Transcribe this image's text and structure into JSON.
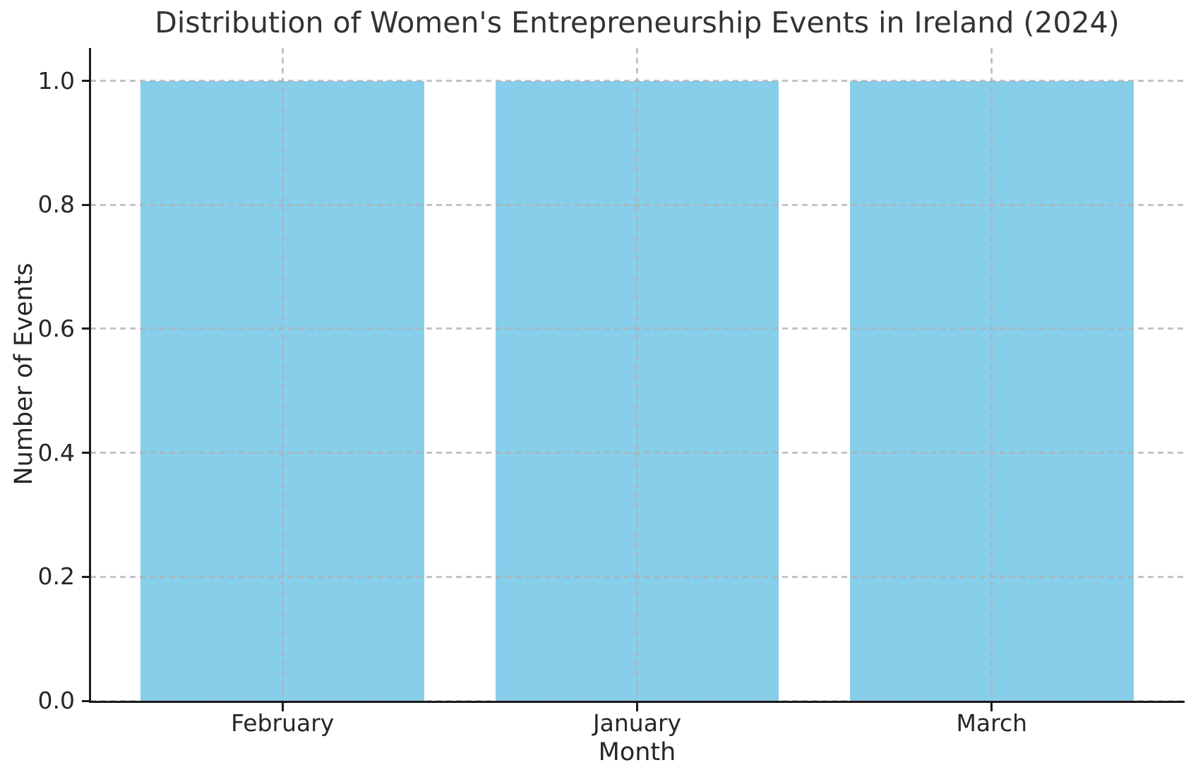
{
  "chart_data": {
    "type": "bar",
    "title": "Distribution of Women's Entrepreneurship Events in Ireland (2024)",
    "xlabel": "Month",
    "ylabel": "Number of Events",
    "categories": [
      "February",
      "January",
      "March"
    ],
    "values": [
      1,
      1,
      1
    ],
    "yticks": [
      0.0,
      0.2,
      0.4,
      0.6,
      0.8,
      1.0
    ],
    "ytick_labels": [
      "0.0",
      "0.2",
      "0.4",
      "0.6",
      "0.8",
      "1.0"
    ],
    "ylim": [
      0,
      1.053
    ],
    "xlim": [
      -0.542,
      2.542
    ],
    "bar_width": 0.8,
    "grid": true,
    "legend": "none",
    "bar_color": "#87CEEB",
    "grid_color": "#b0b0b0",
    "spine_color": "#1a1a1a",
    "text_color": "#333333",
    "background_color": "#ffffff"
  }
}
